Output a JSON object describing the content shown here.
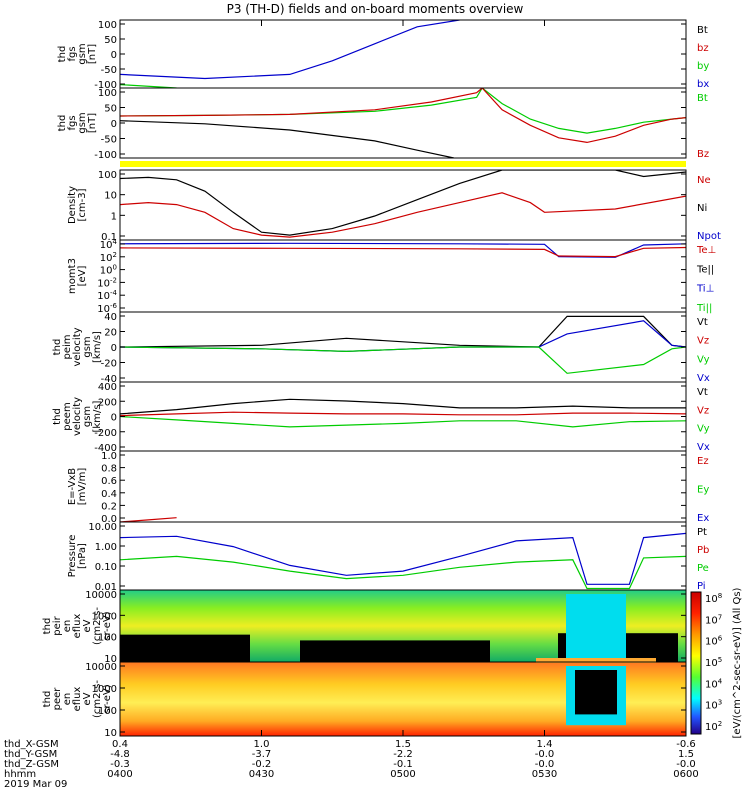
{
  "title": "P3 (TH-D) fields and on-board moments overview",
  "colors": {
    "black": "#000000",
    "red": "#cc0000",
    "green": "#00cc00",
    "blue": "#0000cc",
    "yellow": "#ffff00"
  },
  "colorbar": {
    "tick_labels": [
      "10^8",
      "10^7",
      "10^6",
      "10^5",
      "10^4",
      "10^3",
      "10^2"
    ],
    "label": "[eV/(cm^2-sec-sr-eV)] (All Qs)"
  },
  "xaxis": {
    "row_labels": [
      "thd_X-GSM",
      "thd_Y-GSM",
      "thd_Z-GSM",
      "hhmm",
      "2019 Mar 09"
    ],
    "rows": [
      [
        "0.4",
        "1.0",
        "1.5",
        "1.4",
        "-0.6"
      ],
      [
        "-4.8",
        "-3.7",
        "-2.2",
        "-0.0",
        "1.5"
      ],
      [
        "-0.3",
        "-0.2",
        "-0.1",
        "-0.0",
        "-0.0"
      ],
      [
        "0400",
        "0430",
        "0500",
        "0530",
        "0600"
      ]
    ]
  },
  "chart_data": [
    {
      "type": "line",
      "id": "fgs-gsm",
      "ylabel_lines": [
        "thd",
        "fgs",
        "gsm",
        "[nT]"
      ],
      "ylim": [
        -100,
        100
      ],
      "ytick_labels": [
        "100",
        "50",
        "0",
        "-50",
        "-100"
      ],
      "legend": [
        [
          "Bt",
          "black"
        ],
        [
          "bz",
          "red"
        ],
        [
          "by",
          "green"
        ],
        [
          "bx",
          "blue"
        ]
      ],
      "series": [
        {
          "name": "bx",
          "color": "blue",
          "x": [
            0,
            30,
            60,
            75,
            90,
            105,
            120
          ],
          "y": [
            -60,
            -72,
            -60,
            -20,
            30,
            80,
            100
          ]
        },
        {
          "name": "by",
          "color": "green",
          "x": [
            0,
            20
          ],
          "y": [
            -90,
            -100
          ]
        }
      ]
    },
    {
      "type": "line",
      "id": "fgs-gsm-bt",
      "ylabel_lines": [
        "thd",
        "fgs",
        "gsm",
        "[nT]"
      ],
      "ylim": [
        -125,
        100
      ],
      "ytick_labels": [
        "100",
        "50",
        "0",
        "-50",
        "-100"
      ],
      "legend": [
        [
          "Bt",
          "green"
        ],
        [
          "Bz",
          "red"
        ]
      ],
      "series": [
        {
          "name": "Bt",
          "color": "green",
          "x": [
            0,
            30,
            60,
            90,
            110,
            126,
            128,
            135,
            145,
            155,
            165,
            175,
            185,
            195,
            200
          ],
          "y": [
            10,
            12,
            15,
            25,
            45,
            70,
            100,
            50,
            0,
            -30,
            -45,
            -30,
            -10,
            0,
            5
          ]
        },
        {
          "name": "Bz",
          "color": "red",
          "x": [
            0,
            30,
            60,
            90,
            110,
            126,
            128,
            135,
            145,
            155,
            165,
            175,
            185,
            195,
            200
          ],
          "y": [
            10,
            12,
            15,
            30,
            55,
            85,
            100,
            30,
            -20,
            -60,
            -75,
            -55,
            -20,
            0,
            5
          ]
        },
        {
          "name": "black",
          "color": "black",
          "x": [
            0,
            30,
            60,
            90,
            105,
            118
          ],
          "y": [
            -5,
            -15,
            -35,
            -70,
            -100,
            -125
          ]
        }
      ]
    },
    {
      "type": "line",
      "id": "density",
      "scale": "log",
      "ylabel_lines": [
        "Density",
        "[cm-3]"
      ],
      "ylim": [
        0.01,
        200
      ],
      "ytick_labels": [
        "100",
        "10",
        "1",
        "0.1"
      ],
      "legend": [
        [
          "Ne",
          "red"
        ],
        [
          "Ni",
          "black"
        ],
        [
          "Npot",
          "blue"
        ]
      ],
      "series": [
        {
          "name": "Ni",
          "color": "black",
          "x": [
            0,
            10,
            20,
            30,
            40,
            50,
            60,
            75,
            90,
            105,
            120,
            135,
            140,
            150,
            175,
            185,
            200
          ],
          "y": [
            60,
            70,
            50,
            10,
            0.5,
            0.03,
            0.02,
            0.05,
            0.3,
            3,
            30,
            200,
            200,
            200,
            200,
            80,
            150
          ]
        },
        {
          "name": "Ne",
          "color": "red",
          "x": [
            0,
            10,
            20,
            30,
            40,
            50,
            60,
            75,
            90,
            105,
            120,
            135,
            145,
            150,
            175,
            200
          ],
          "y": [
            1.5,
            2,
            1.5,
            0.5,
            0.05,
            0.02,
            0.015,
            0.03,
            0.1,
            0.5,
            2,
            8,
            2,
            0.5,
            0.8,
            5
          ]
        }
      ]
    },
    {
      "type": "line",
      "id": "moms-temp",
      "scale": "log",
      "ylabel_lines": [
        "momt3",
        "[eV]"
      ],
      "ylim": [
        1e-06,
        10000
      ],
      "ytick_labels": [
        "10^4",
        "10^2",
        "10^0",
        "10^-2",
        "10^-4",
        "10^-6"
      ],
      "legend": [
        [
          "Te⊥",
          "red"
        ],
        [
          "Te||",
          "black"
        ],
        [
          "Ti⊥",
          "blue"
        ],
        [
          "Ti||",
          "green"
        ]
      ],
      "series": [
        {
          "name": "Ti⊥",
          "color": "blue",
          "x": [
            0,
            60,
            120,
            150,
            155,
            175,
            185,
            200
          ],
          "y": [
            3000,
            3500,
            3000,
            2500,
            50,
            40,
            2000,
            3000
          ]
        },
        {
          "name": "Te⊥",
          "color": "red",
          "x": [
            0,
            60,
            120,
            150,
            155,
            175,
            185,
            200
          ],
          "y": [
            800,
            700,
            600,
            500,
            60,
            50,
            700,
            900
          ]
        }
      ]
    },
    {
      "type": "line",
      "id": "peim-velocity",
      "ylabel_lines": [
        "thd",
        "peim",
        "velocity",
        "gsm",
        "[km/s]"
      ],
      "ylim": [
        -40,
        40
      ],
      "ytick_labels": [
        "40",
        "20",
        "0",
        "-20",
        "-40"
      ],
      "legend": [
        [
          "Vt",
          "black"
        ],
        [
          "Vz",
          "red"
        ],
        [
          "Vy",
          "green"
        ],
        [
          "Vx",
          "blue"
        ]
      ],
      "series": [
        {
          "name": "Vt",
          "color": "black",
          "x": [
            0,
            50,
            80,
            120,
            148,
            158,
            185,
            195,
            200
          ],
          "y": [
            0,
            2,
            10,
            2,
            0,
            35,
            35,
            2,
            0
          ]
        },
        {
          "name": "Vx",
          "color": "blue",
          "x": [
            0,
            50,
            80,
            120,
            148,
            158,
            185,
            195,
            200
          ],
          "y": [
            0,
            -2,
            -5,
            0,
            0,
            15,
            30,
            2,
            0
          ]
        },
        {
          "name": "Vy",
          "color": "green",
          "x": [
            0,
            50,
            80,
            120,
            148,
            158,
            185,
            195,
            200
          ],
          "y": [
            0,
            -2,
            -5,
            0,
            0,
            -30,
            -20,
            -2,
            0
          ]
        }
      ]
    },
    {
      "type": "line",
      "id": "peem-velocity",
      "ylabel_lines": [
        "thd",
        "peem",
        "velocity",
        "gsm",
        "[km/s]"
      ],
      "ylim": [
        -400,
        400
      ],
      "ytick_labels": [
        "400",
        "200",
        "0",
        "-200",
        "-400"
      ],
      "legend": [
        [
          "Vt",
          "black"
        ],
        [
          "Vz",
          "red"
        ],
        [
          "Vy",
          "green"
        ],
        [
          "Vx",
          "blue"
        ]
      ],
      "series": [
        {
          "name": "Vt",
          "color": "black",
          "x": [
            0,
            20,
            40,
            60,
            80,
            100,
            120,
            140,
            160,
            180,
            200
          ],
          "y": [
            30,
            80,
            150,
            200,
            180,
            150,
            100,
            100,
            120,
            100,
            100
          ]
        },
        {
          "name": "Vz",
          "color": "red",
          "x": [
            0,
            20,
            40,
            60,
            80,
            100,
            120,
            140,
            160,
            180,
            200
          ],
          "y": [
            10,
            30,
            50,
            40,
            30,
            30,
            20,
            20,
            40,
            40,
            30
          ]
        },
        {
          "name": "Vy",
          "color": "green",
          "x": [
            0,
            20,
            40,
            60,
            80,
            100,
            120,
            140,
            160,
            180,
            200
          ],
          "y": [
            0,
            -40,
            -80,
            -120,
            -100,
            -80,
            -50,
            -50,
            -120,
            -60,
            -50
          ]
        }
      ]
    },
    {
      "type": "line",
      "id": "efield",
      "ylabel_lines": [
        "E=-VxB",
        "[mV/m]"
      ],
      "ylim": [
        0,
        1
      ],
      "ytick_labels": [
        "1.0",
        "0.8",
        "0.6",
        "0.4",
        "0.2",
        "0.0"
      ],
      "legend": [
        [
          "Ez",
          "red"
        ],
        [
          "Ey",
          "green"
        ],
        [
          "Ex",
          "blue"
        ]
      ],
      "series": [
        {
          "name": "Ez",
          "color": "red",
          "x": [
            0,
            10,
            20
          ],
          "y": [
            0.0,
            0.03,
            0.06
          ]
        }
      ]
    },
    {
      "type": "line",
      "id": "pressure",
      "scale": "log",
      "ylabel_lines": [
        "Pressure",
        "[nPa]"
      ],
      "ylim": [
        0.005,
        20
      ],
      "ytick_labels": [
        "10.00",
        "1.00",
        "0.10",
        "0.01"
      ],
      "legend": [
        [
          "Pt",
          "black"
        ],
        [
          "Pb",
          "red"
        ],
        [
          "Pe",
          "green"
        ],
        [
          "Pi",
          "blue"
        ]
      ],
      "series": [
        {
          "name": "Pi",
          "color": "blue",
          "x": [
            0,
            20,
            40,
            60,
            80,
            100,
            120,
            140,
            160,
            165,
            180,
            185,
            200
          ],
          "y": [
            3,
            3.5,
            1,
            0.1,
            0.03,
            0.05,
            0.3,
            2,
            3,
            0.01,
            0.01,
            3,
            5
          ]
        },
        {
          "name": "Pe",
          "color": "green",
          "x": [
            0,
            20,
            40,
            60,
            80,
            100,
            120,
            140,
            160,
            165,
            180,
            185,
            200
          ],
          "y": [
            0.2,
            0.3,
            0.15,
            0.05,
            0.02,
            0.03,
            0.08,
            0.15,
            0.2,
            0.006,
            0.006,
            0.25,
            0.3
          ]
        }
      ]
    },
    {
      "type": "heatmap",
      "id": "peir-en-eflux",
      "ylabel_lines": [
        "thd",
        "peir",
        "en",
        "eflux",
        "eV",
        "(cm2-s-",
        "sr-eV)"
      ],
      "ytick_labels": [
        "10000",
        "1000",
        "100",
        "10"
      ]
    },
    {
      "type": "heatmap",
      "id": "peer-en-eflux",
      "ylabel_lines": [
        "thd",
        "peer",
        "en",
        "eflux",
        "eV",
        "(cm2-s-",
        "sr-eV)"
      ],
      "ytick_labels": [
        "10000",
        "1000",
        "100",
        "10"
      ]
    }
  ]
}
